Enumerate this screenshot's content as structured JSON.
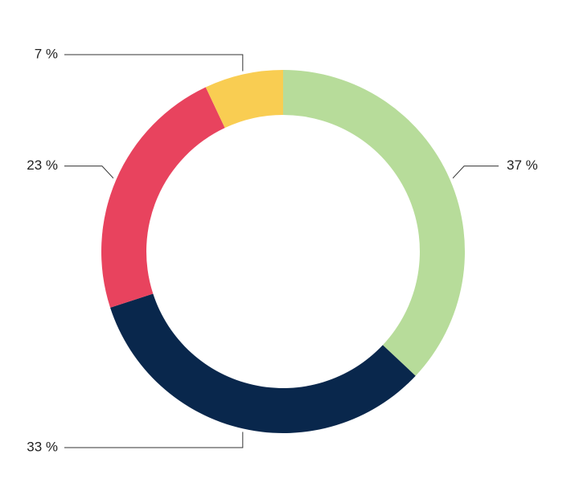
{
  "chart_data": {
    "type": "donut",
    "values": [
      37,
      33,
      23,
      7
    ],
    "value_labels": [
      "37 %",
      "33 %",
      "23 %",
      "7 %"
    ],
    "colors": [
      "#b7dc9a",
      "#09274c",
      "#e8435e",
      "#f9cd52"
    ]
  }
}
